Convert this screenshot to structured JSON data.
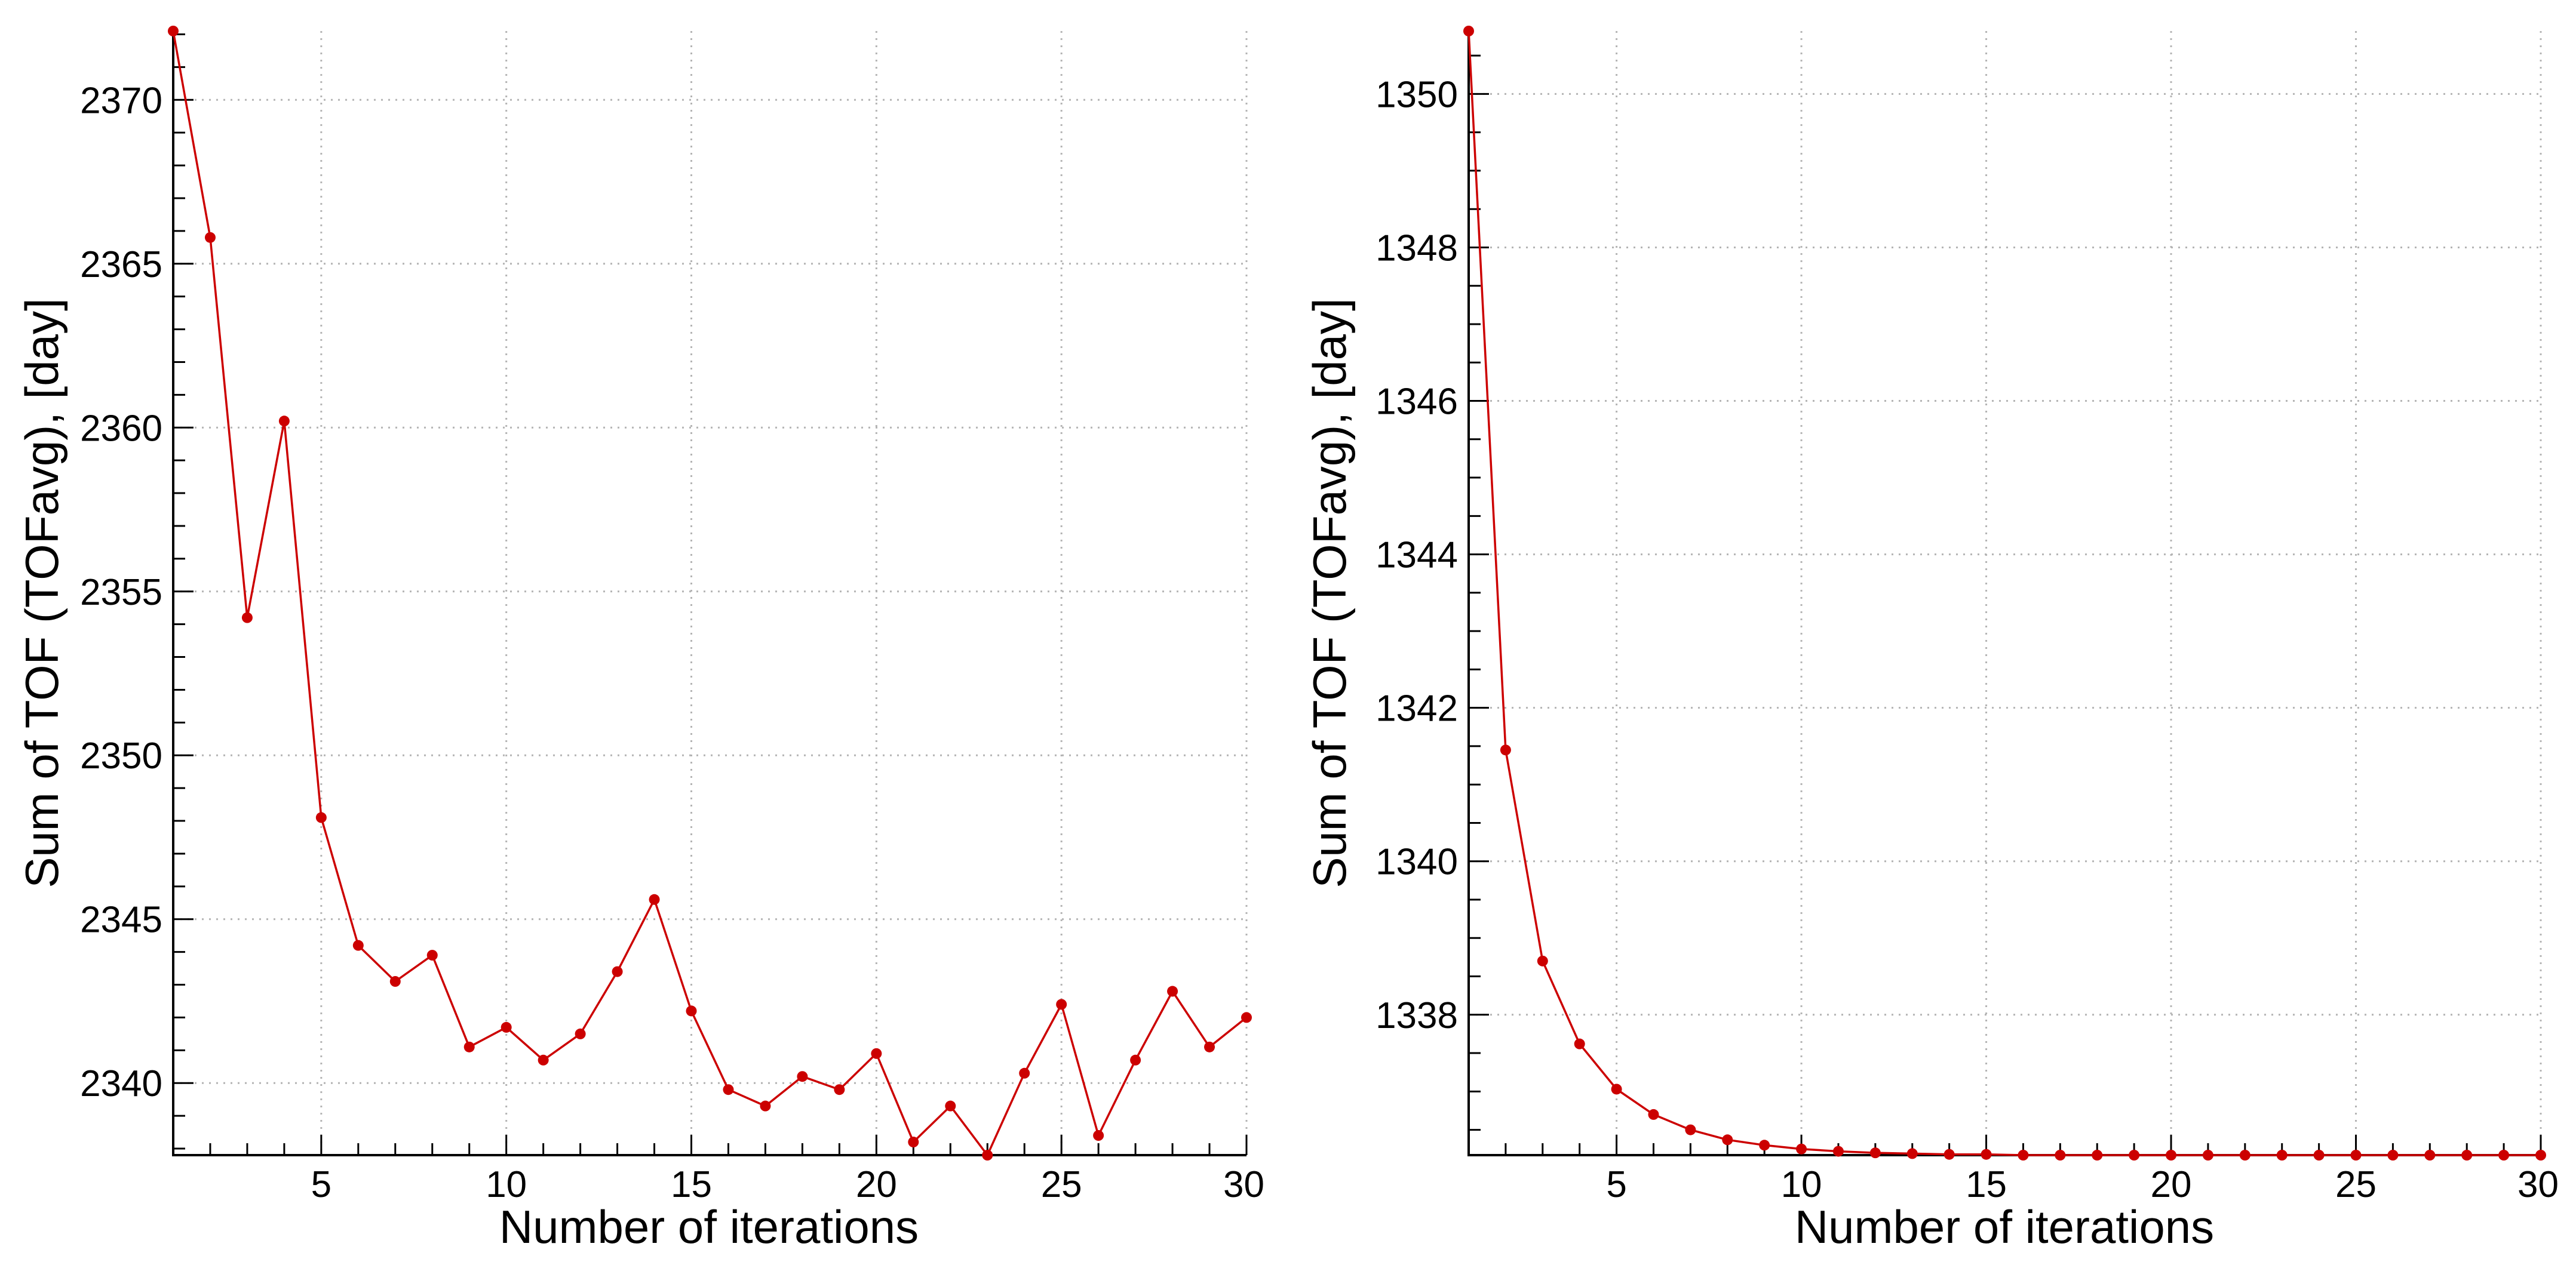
{
  "chart_data": [
    {
      "type": "line",
      "xlabel": "Number of iterations",
      "ylabel": "Sum of TOF (TOFavg), [day]",
      "xlim": [
        1,
        30
      ],
      "ylim": [
        2337.8,
        2372.1
      ],
      "xticks": [
        5,
        10,
        15,
        20,
        25,
        30
      ],
      "yticks": [
        2340,
        2345,
        2350,
        2355,
        2360,
        2365,
        2370
      ],
      "x_minor_step": 1,
      "y_minor_step": 1,
      "grid": true,
      "series": [
        {
          "color": "#cc0000",
          "x": [
            1,
            2,
            3,
            4,
            5,
            6,
            7,
            8,
            9,
            10,
            11,
            12,
            13,
            14,
            15,
            16,
            17,
            18,
            19,
            20,
            21,
            22,
            23,
            24,
            25,
            26,
            27,
            28,
            29,
            30
          ],
          "y": [
            2372.1,
            2365.8,
            2354.2,
            2360.2,
            2348.1,
            2344.2,
            2343.1,
            2343.9,
            2341.1,
            2341.7,
            2340.7,
            2341.5,
            2343.4,
            2345.6,
            2342.2,
            2339.8,
            2339.3,
            2340.2,
            2339.8,
            2340.9,
            2338.2,
            2339.3,
            2337.8,
            2340.3,
            2342.4,
            2338.4,
            2340.7,
            2342.8,
            2341.1,
            2342.0
          ]
        }
      ]
    },
    {
      "type": "line",
      "xlabel": "Number of iterations",
      "ylabel": "Sum of TOF (TOFavg), [day]",
      "xlim": [
        1,
        30
      ],
      "ylim": [
        1336.17,
        1350.82
      ],
      "xticks": [
        5,
        10,
        15,
        20,
        25,
        30
      ],
      "yticks": [
        1338,
        1340,
        1342,
        1344,
        1346,
        1348,
        1350
      ],
      "x_minor_step": 1,
      "y_minor_step": 0.5,
      "grid": true,
      "series": [
        {
          "color": "#cc0000",
          "x": [
            1,
            2,
            3,
            4,
            5,
            6,
            7,
            8,
            9,
            10,
            11,
            12,
            13,
            14,
            15,
            16,
            17,
            18,
            19,
            20,
            21,
            22,
            23,
            24,
            25,
            26,
            27,
            28,
            29,
            30
          ],
          "y": [
            1350.82,
            1341.45,
            1338.7,
            1337.62,
            1337.03,
            1336.7,
            1336.5,
            1336.37,
            1336.3,
            1336.25,
            1336.22,
            1336.2,
            1336.19,
            1336.18,
            1336.18,
            1336.17,
            1336.17,
            1336.17,
            1336.17,
            1336.17,
            1336.17,
            1336.17,
            1336.17,
            1336.17,
            1336.17,
            1336.17,
            1336.17,
            1336.17,
            1336.17,
            1336.17
          ]
        }
      ]
    }
  ]
}
